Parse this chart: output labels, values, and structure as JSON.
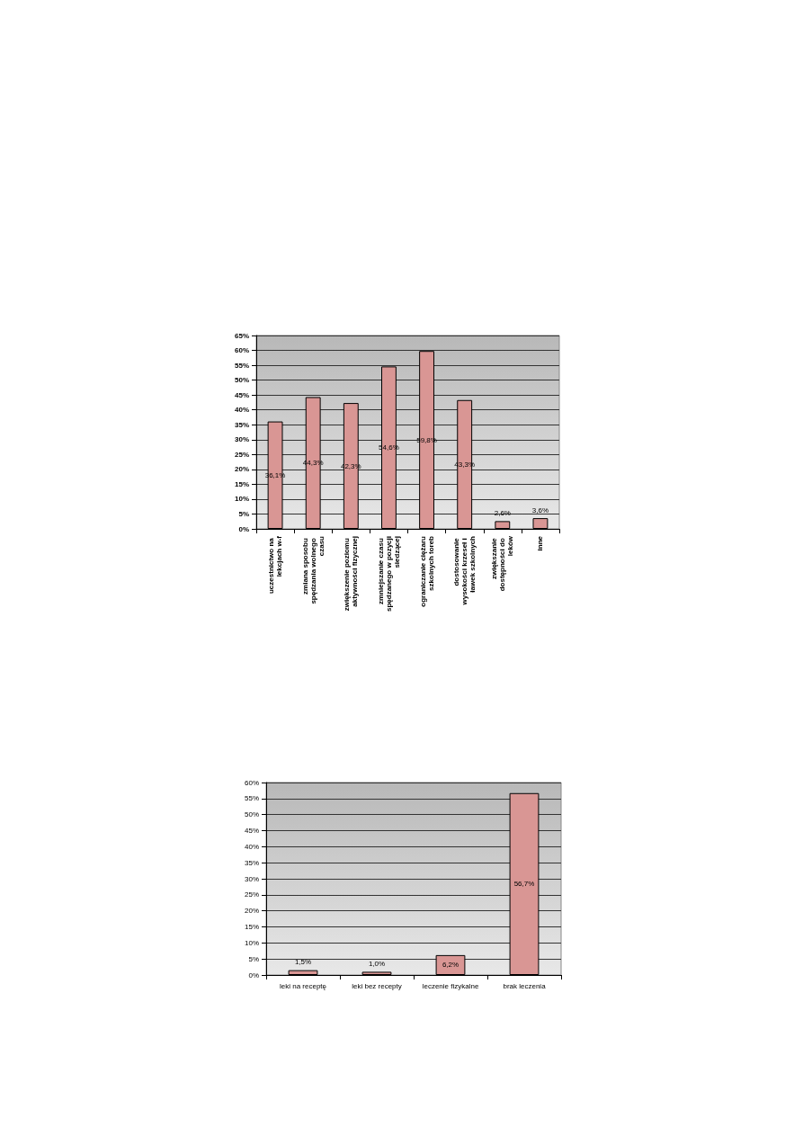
{
  "chart_data": [
    {
      "type": "bar",
      "categories": [
        "uczestnictwo na lekcjach w-f",
        "zmiana sposobu spędzania wolnego czasu",
        "zwiększenie poziomu aktywności fizycznej",
        "zmniejszanie czasu spędzanego w pozycji siedzącej",
        "ograniczanie ciężaru szkolnych toreb",
        "dostosowanie wysokości krzeseł i ławek szkolnych",
        "zwiększanie dostępności do leków",
        "inne"
      ],
      "values": [
        36.1,
        44.3,
        42.3,
        54.6,
        59.8,
        43.3,
        2.6,
        3.6
      ],
      "value_labels": [
        "36,1%",
        "44,3%",
        "42,3%",
        "54,6%",
        "59,8%",
        "43,3%",
        "2,6%",
        "3,6%"
      ],
      "color": "#d99694",
      "ylim": [
        0,
        65
      ],
      "yticks": [
        {
          "value": 0,
          "label": "0%"
        },
        {
          "value": 5,
          "label": "5%"
        },
        {
          "value": 10,
          "label": "10%"
        },
        {
          "value": 15,
          "label": "15%"
        },
        {
          "value": 20,
          "label": "20%"
        },
        {
          "value": 25,
          "label": "25%"
        },
        {
          "value": 30,
          "label": "30%"
        },
        {
          "value": 35,
          "label": "35%"
        },
        {
          "value": 40,
          "label": "40%"
        },
        {
          "value": 45,
          "label": "45%"
        },
        {
          "value": 50,
          "label": "50%"
        },
        {
          "value": 55,
          "label": "55%"
        },
        {
          "value": 60,
          "label": "60%"
        },
        {
          "value": 65,
          "label": "65%"
        }
      ],
      "grid": "y"
    },
    {
      "type": "bar",
      "categories": [
        "leki na receptę",
        "leki bez recepty",
        "leczenie fizykalne",
        "brak leczenia"
      ],
      "values": [
        1.5,
        1.0,
        6.2,
        56.7
      ],
      "value_labels": [
        "1,5%",
        "1,0%",
        "6,2%",
        "56,7%"
      ],
      "color": "#d99694",
      "ylim": [
        0,
        60
      ],
      "yticks": [
        {
          "value": 0,
          "label": "0%"
        },
        {
          "value": 5,
          "label": "5%"
        },
        {
          "value": 10,
          "label": "10%"
        },
        {
          "value": 15,
          "label": "15%"
        },
        {
          "value": 20,
          "label": "20%"
        },
        {
          "value": 25,
          "label": "25%"
        },
        {
          "value": 30,
          "label": "30%"
        },
        {
          "value": 35,
          "label": "35%"
        },
        {
          "value": 40,
          "label": "40%"
        },
        {
          "value": 45,
          "label": "45%"
        },
        {
          "value": 50,
          "label": "50%"
        },
        {
          "value": 55,
          "label": "55%"
        },
        {
          "value": 60,
          "label": "60%"
        }
      ],
      "grid": "y"
    }
  ]
}
